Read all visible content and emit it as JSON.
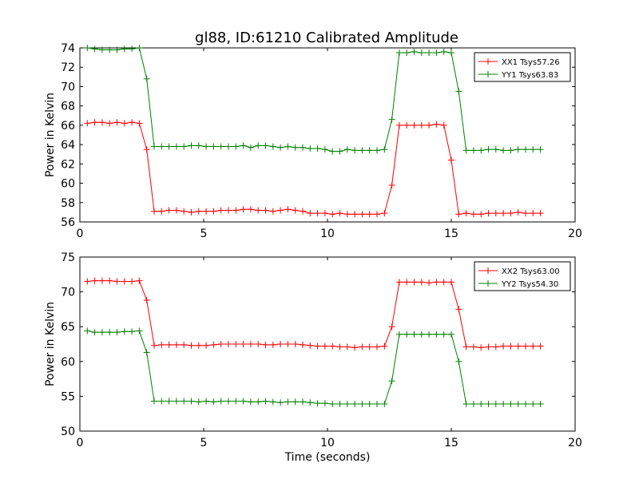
{
  "title": "gl88, ID:61210 Calibrated Amplitude",
  "chart_data": [
    {
      "type": "line",
      "ylabel": "Power in Kelvin",
      "xlabel": "",
      "xlim": [
        0,
        20
      ],
      "ylim": [
        56,
        74
      ],
      "xticks": [
        "0",
        "5",
        "10",
        "15",
        "20"
      ],
      "yticks": [
        "56",
        "58",
        "60",
        "62",
        "64",
        "66",
        "68",
        "70",
        "72",
        "74"
      ],
      "legend_position": "top-right",
      "x": [
        0.3,
        0.6,
        0.9,
        1.2,
        1.5,
        1.8,
        2.1,
        2.4,
        2.7,
        3.0,
        3.3,
        3.6,
        3.9,
        4.2,
        4.5,
        4.8,
        5.1,
        5.4,
        5.7,
        6.0,
        6.3,
        6.6,
        6.9,
        7.2,
        7.5,
        7.8,
        8.1,
        8.4,
        8.7,
        9.0,
        9.3,
        9.6,
        9.9,
        10.2,
        10.5,
        10.8,
        11.1,
        11.4,
        11.7,
        12.0,
        12.3,
        12.6,
        12.9,
        13.2,
        13.5,
        13.8,
        14.1,
        14.4,
        14.7,
        15.0,
        15.3,
        15.6,
        15.9,
        16.2,
        16.5,
        16.8,
        17.1,
        17.4,
        17.7,
        18.0,
        18.3,
        18.6
      ],
      "series": [
        {
          "name": "XX1 Tsys57.26",
          "color": "#ff0000",
          "values": [
            66.2,
            66.3,
            66.3,
            66.2,
            66.3,
            66.2,
            66.3,
            66.2,
            63.5,
            57.1,
            57.1,
            57.2,
            57.2,
            57.1,
            57.0,
            57.1,
            57.1,
            57.1,
            57.2,
            57.2,
            57.2,
            57.3,
            57.3,
            57.2,
            57.2,
            57.1,
            57.2,
            57.3,
            57.2,
            57.1,
            56.9,
            56.9,
            56.9,
            56.8,
            56.9,
            56.8,
            56.8,
            56.8,
            56.8,
            56.8,
            56.9,
            59.8,
            66.0,
            66.0,
            66.0,
            66.0,
            66.0,
            66.1,
            66.0,
            62.4,
            56.8,
            56.9,
            56.8,
            56.8,
            56.9,
            56.9,
            56.9,
            56.9,
            57.0,
            56.9,
            56.9,
            56.9
          ]
        },
        {
          "name": "YY1 Tsys63.83",
          "color": "#008000",
          "values": [
            74.0,
            73.9,
            73.8,
            73.8,
            73.8,
            73.9,
            73.9,
            74.0,
            70.8,
            63.8,
            63.8,
            63.8,
            63.8,
            63.8,
            63.9,
            63.9,
            63.8,
            63.8,
            63.8,
            63.8,
            63.8,
            63.9,
            63.7,
            63.9,
            63.9,
            63.8,
            63.7,
            63.8,
            63.7,
            63.7,
            63.6,
            63.6,
            63.5,
            63.3,
            63.3,
            63.5,
            63.4,
            63.4,
            63.4,
            63.4,
            63.5,
            66.6,
            73.5,
            73.5,
            73.6,
            73.5,
            73.5,
            73.5,
            73.6,
            73.5,
            69.5,
            63.4,
            63.4,
            63.4,
            63.5,
            63.5,
            63.4,
            63.4,
            63.5,
            63.5,
            63.5,
            63.5
          ]
        }
      ]
    },
    {
      "type": "line",
      "ylabel": "Power in Kelvin",
      "xlabel": "Time (seconds)",
      "xlim": [
        0,
        20
      ],
      "ylim": [
        50,
        75
      ],
      "xticks": [
        "0",
        "5",
        "10",
        "15",
        "20"
      ],
      "yticks": [
        "50",
        "55",
        "60",
        "65",
        "70",
        "75"
      ],
      "legend_position": "top-right",
      "x": [
        0.3,
        0.6,
        0.9,
        1.2,
        1.5,
        1.8,
        2.1,
        2.4,
        2.7,
        3.0,
        3.3,
        3.6,
        3.9,
        4.2,
        4.5,
        4.8,
        5.1,
        5.4,
        5.7,
        6.0,
        6.3,
        6.6,
        6.9,
        7.2,
        7.5,
        7.8,
        8.1,
        8.4,
        8.7,
        9.0,
        9.3,
        9.6,
        9.9,
        10.2,
        10.5,
        10.8,
        11.1,
        11.4,
        11.7,
        12.0,
        12.3,
        12.6,
        12.9,
        13.2,
        13.5,
        13.8,
        14.1,
        14.4,
        14.7,
        15.0,
        15.3,
        15.6,
        15.9,
        16.2,
        16.5,
        16.8,
        17.1,
        17.4,
        17.7,
        18.0,
        18.3,
        18.6
      ],
      "series": [
        {
          "name": "XX2 Tsys63.00",
          "color": "#ff0000",
          "values": [
            71.5,
            71.6,
            71.6,
            71.6,
            71.5,
            71.5,
            71.5,
            71.6,
            68.8,
            62.3,
            62.4,
            62.4,
            62.4,
            62.4,
            62.3,
            62.3,
            62.3,
            62.4,
            62.5,
            62.5,
            62.5,
            62.5,
            62.5,
            62.5,
            62.4,
            62.4,
            62.5,
            62.5,
            62.5,
            62.4,
            62.3,
            62.2,
            62.2,
            62.2,
            62.1,
            62.1,
            62.0,
            62.1,
            62.1,
            62.1,
            62.2,
            65.0,
            71.4,
            71.4,
            71.4,
            71.4,
            71.3,
            71.4,
            71.4,
            71.4,
            67.5,
            62.1,
            62.1,
            62.0,
            62.1,
            62.1,
            62.2,
            62.2,
            62.2,
            62.2,
            62.2,
            62.2
          ]
        },
        {
          "name": "YY2 Tsys54.30",
          "color": "#008000",
          "values": [
            64.4,
            64.2,
            64.2,
            64.2,
            64.2,
            64.3,
            64.3,
            64.4,
            61.3,
            54.3,
            54.3,
            54.3,
            54.3,
            54.3,
            54.3,
            54.2,
            54.3,
            54.2,
            54.3,
            54.3,
            54.3,
            54.3,
            54.2,
            54.2,
            54.3,
            54.2,
            54.1,
            54.2,
            54.2,
            54.2,
            54.1,
            54.0,
            54.0,
            53.9,
            53.9,
            53.9,
            53.9,
            53.9,
            53.9,
            53.9,
            53.9,
            57.2,
            63.9,
            63.9,
            63.9,
            63.9,
            63.9,
            63.9,
            63.9,
            63.9,
            60.0,
            53.9,
            53.9,
            53.9,
            53.9,
            53.9,
            53.9,
            53.9,
            53.9,
            53.9,
            53.9,
            53.9
          ]
        }
      ]
    }
  ]
}
